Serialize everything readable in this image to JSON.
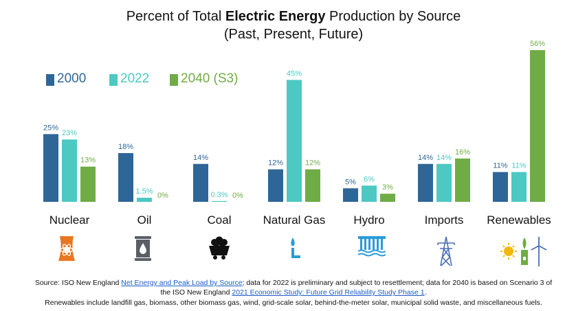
{
  "title": {
    "prefix": "Percent of Total ",
    "bold": "Electric Energy",
    "suffix": " Production by Source",
    "line2": "(Past, Present, Future)"
  },
  "chart_data": {
    "type": "bar",
    "categories": [
      "Nuclear",
      "Oil",
      "Coal",
      "Natural Gas",
      "Hydro",
      "Imports",
      "Renewables"
    ],
    "series": [
      {
        "name": "2000",
        "color": "#2e6698",
        "values": [
          25,
          18,
          14,
          12,
          5,
          14,
          11
        ],
        "labels": [
          "25%",
          "18%",
          "14%",
          "12%",
          "5%",
          "14%",
          "11%"
        ]
      },
      {
        "name": "2022",
        "color": "#4dc8c3",
        "values": [
          23,
          1.5,
          0.3,
          45,
          6,
          14,
          11
        ],
        "labels": [
          "23%",
          "1.5%",
          "0.3%",
          "45%",
          "6%",
          "14%",
          "11%"
        ]
      },
      {
        "name": "2040 (S3)",
        "color": "#6fac45",
        "values": [
          13,
          0,
          0,
          12,
          3,
          16,
          56
        ],
        "labels": [
          "13%",
          "0%",
          "0%",
          "12%",
          "3%",
          "16%",
          "56%"
        ]
      }
    ],
    "legend_position": "top-left",
    "grid": false,
    "ylim": [
      0,
      56
    ]
  },
  "icons": [
    {
      "name": "nuclear-plant-icon",
      "color": "#e87722"
    },
    {
      "name": "oil-barrel-icon",
      "color": "#5a5f66"
    },
    {
      "name": "coal-cart-icon",
      "color": "#111111"
    },
    {
      "name": "gas-flame-icon",
      "color": "#2a9bd8"
    },
    {
      "name": "hydro-dam-icon",
      "color": "#2a9bd8"
    },
    {
      "name": "transmission-tower-icon",
      "color": "#4a6fb5"
    },
    {
      "name": "renewables-icon",
      "color": "#6fac45"
    }
  ],
  "footer": {
    "source_prefix": "Source: ISO New England ",
    "link1": "Net Energy and Peak Load by Source",
    "mid": "; data for 2022 is preliminary and subject to resettlement; data for 2040 is based on Scenario 3 of",
    "line2_prefix": "the ISO New England ",
    "link2": "2021 Economic Study: Future Grid Reliability Study Phase 1",
    "line2_suffix": ".",
    "line3": "Renewables include landfill gas, biomass, other biomass gas, wind, grid-scale solar, behind-the-meter solar, municipal solid waste, and miscellaneous fuels."
  }
}
